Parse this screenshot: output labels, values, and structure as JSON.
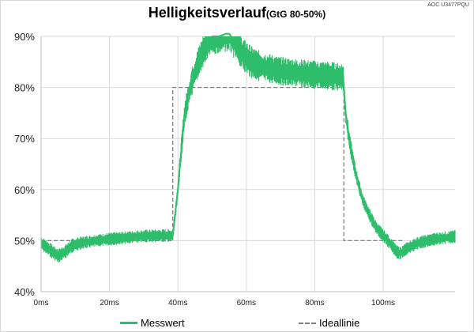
{
  "title": {
    "main": "Helligkeitsverlauf",
    "sub": "(GtG 80-50%)"
  },
  "model_label": "AOC U3477PQU",
  "colors": {
    "measured": "#2ebd6b",
    "ideal": "#7f7f7f",
    "grid": "#d9d9d9",
    "axis": "#bfbfbf"
  },
  "chart_data": {
    "type": "line",
    "title": "Helligkeitsverlauf (GtG 80-50%)",
    "xlabel": "",
    "ylabel": "",
    "x_unit": "ms",
    "xlim": [
      0,
      121
    ],
    "ylim": [
      40,
      90
    ],
    "x_ticks": [
      0,
      20,
      40,
      60,
      80,
      100
    ],
    "x_tick_labels": [
      "0ms",
      "20ms",
      "40ms",
      "60ms",
      "80ms",
      "100ms"
    ],
    "y_ticks": [
      40,
      50,
      60,
      70,
      80,
      90
    ],
    "y_tick_labels": [
      "40%",
      "50%",
      "60%",
      "70%",
      "80%",
      "90%"
    ],
    "grid": true,
    "legend": "bottom",
    "series": [
      {
        "name": "Messwert",
        "style": "solid-noisy",
        "x": [
          0,
          2,
          4,
          5,
          7,
          9,
          12,
          16,
          20,
          25,
          30,
          35,
          38.5,
          39,
          40,
          41,
          42,
          44,
          46,
          48,
          50,
          52,
          54,
          55,
          57,
          59,
          61,
          63,
          66,
          70,
          75,
          80,
          84,
          88.3,
          89,
          90,
          92,
          94,
          96,
          98,
          100,
          102,
          104,
          105,
          107,
          110,
          115,
          121
        ],
        "y": [
          49.5,
          48.5,
          47.5,
          47.0,
          47.8,
          49.0,
          49.6,
          50.0,
          50.3,
          50.6,
          50.9,
          51.0,
          51.0,
          54,
          60,
          68,
          75,
          81,
          85,
          88,
          90,
          90,
          90.5,
          90.5,
          88.5,
          86.5,
          85.2,
          84.4,
          83.8,
          83.2,
          82.8,
          82.5,
          82.3,
          82.0,
          75,
          70,
          63,
          58,
          55,
          52.5,
          51.0,
          49.5,
          47.8,
          47.5,
          48.5,
          49.5,
          50.3,
          50.8
        ],
        "band": [
          1.0,
          1.0,
          1.0,
          1.0,
          1.0,
          1.0,
          0.9,
          0.9,
          0.9,
          0.9,
          0.9,
          0.9,
          0.9,
          1.0,
          1.2,
          1.5,
          1.8,
          2.0,
          2.2,
          2.4,
          2.5,
          2.5,
          2.5,
          2.5,
          2.4,
          2.3,
          2.3,
          2.2,
          2.1,
          2.0,
          2.0,
          2.0,
          2.0,
          2.0,
          1.6,
          1.3,
          1.0,
          0.9,
          0.9,
          0.9,
          0.9,
          0.9,
          0.9,
          0.9,
          0.9,
          0.9,
          0.9,
          0.9
        ]
      },
      {
        "name": "Ideallinie",
        "style": "dashed",
        "x": [
          0,
          38.5,
          38.5,
          88.5,
          88.5,
          106
        ],
        "y": [
          50,
          50,
          80,
          80,
          50,
          50
        ]
      }
    ]
  },
  "legend_items": [
    {
      "label": "Messwert"
    },
    {
      "label": "Ideallinie"
    }
  ]
}
